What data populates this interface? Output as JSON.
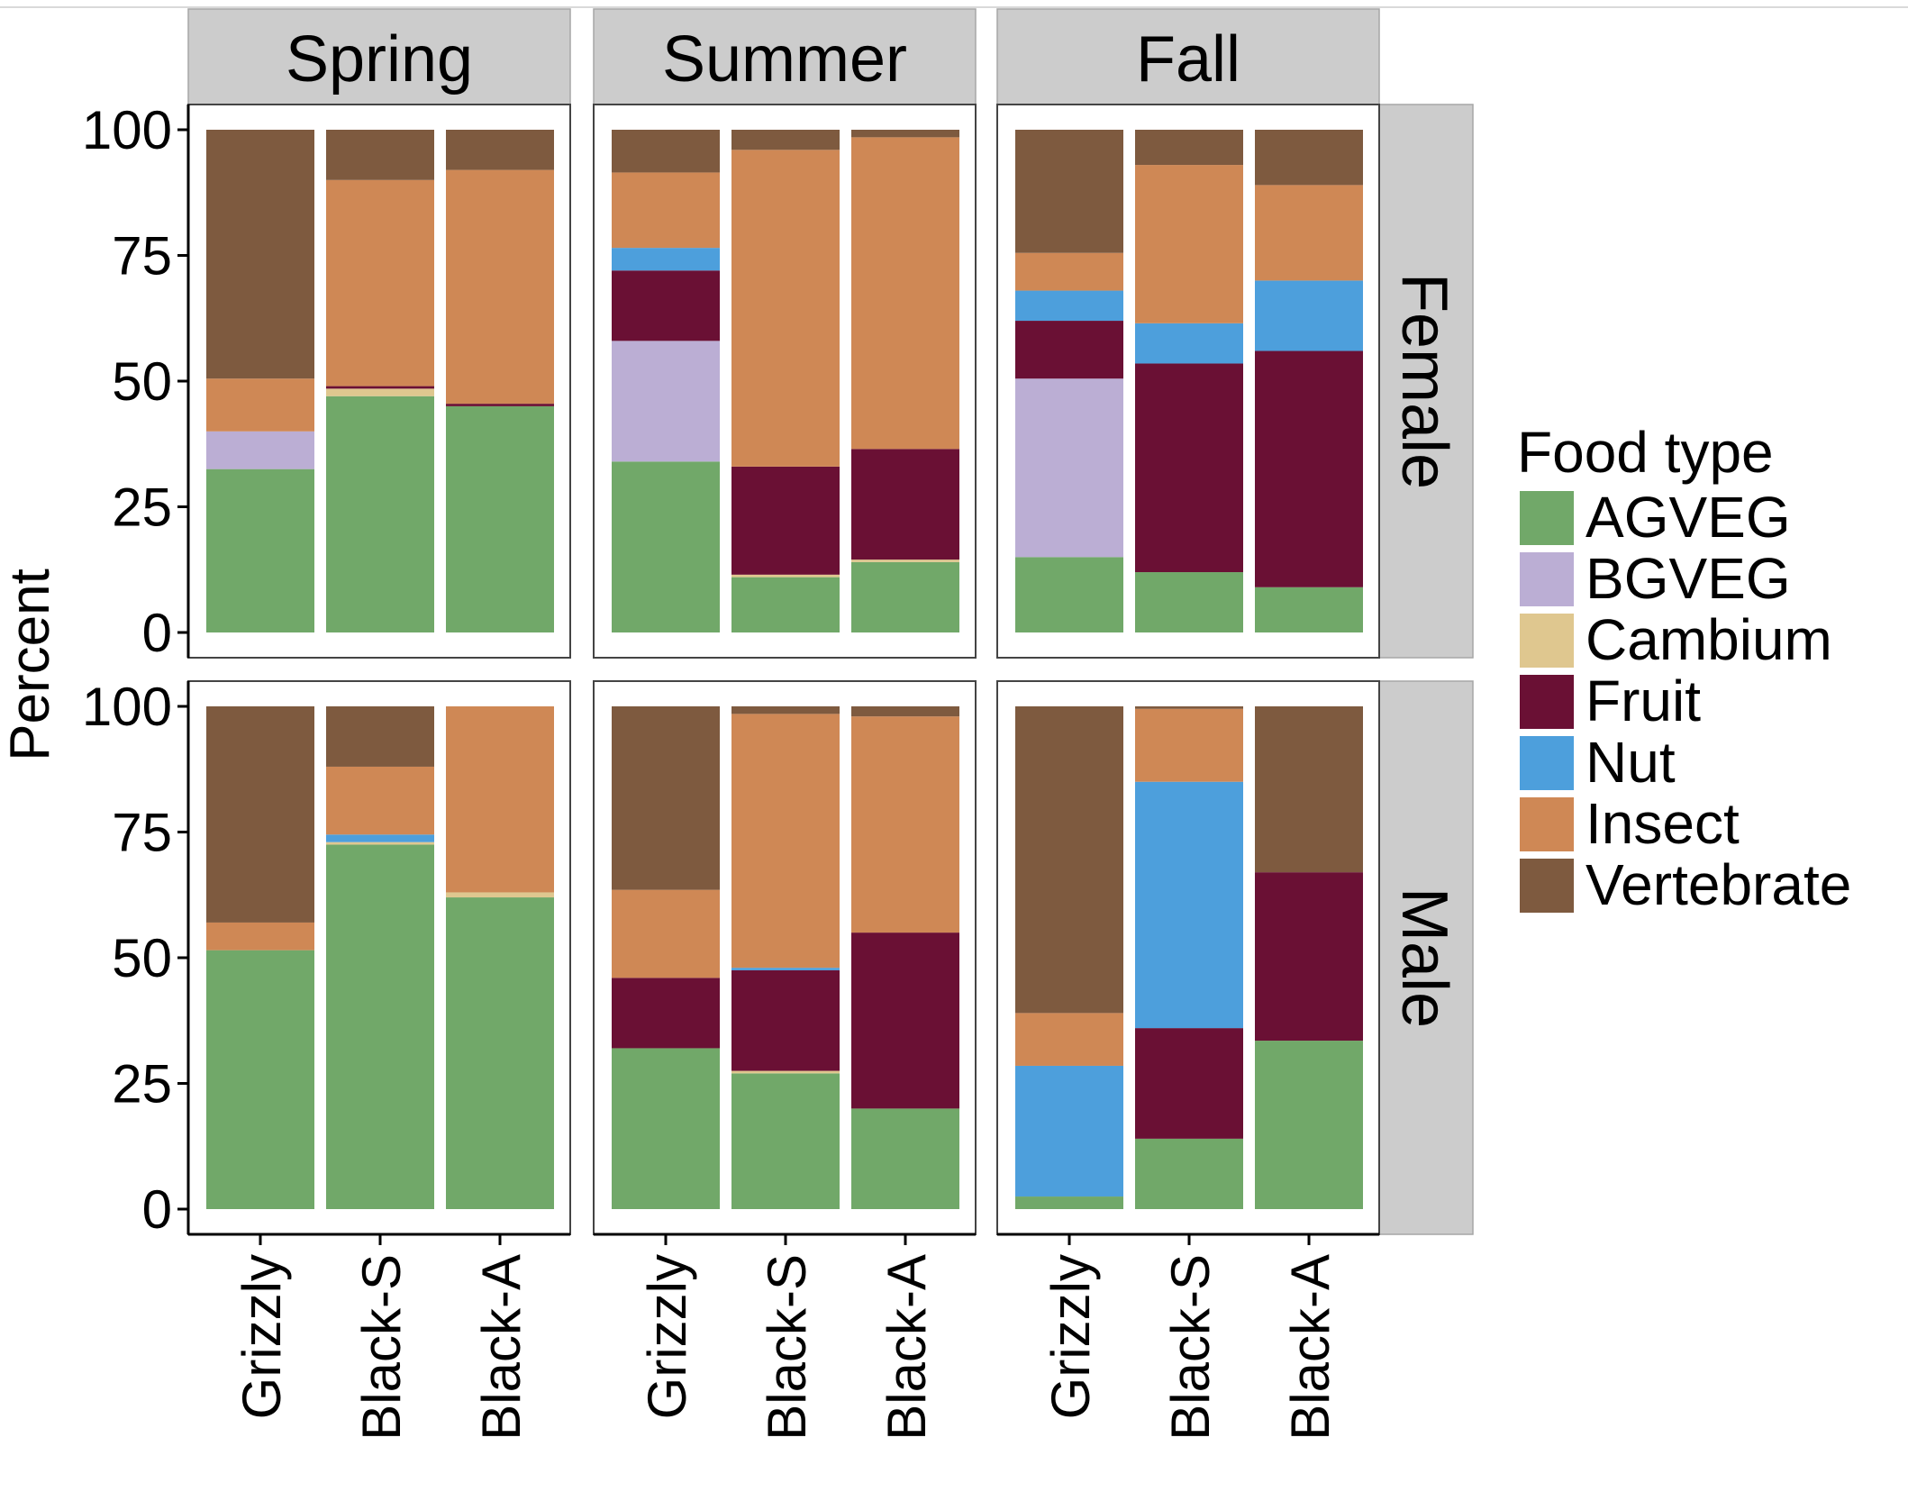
{
  "chart_data": {
    "type": "bar",
    "stacked": true,
    "ylabel": "Percent",
    "xlabel": "",
    "ylim": [
      0,
      100
    ],
    "yticks": [
      0,
      25,
      50,
      75,
      100
    ],
    "categories": [
      "Grizzly",
      "Black-S",
      "Black-A"
    ],
    "seasons": [
      "Spring",
      "Summer",
      "Fall"
    ],
    "sexes": [
      "Female",
      "Male"
    ],
    "legend": {
      "title": "Food type",
      "position": "right",
      "entries": [
        "AGVEG",
        "BGVEG",
        "Cambium",
        "Fruit",
        "Nut",
        "Insect",
        "Vertebrate"
      ]
    },
    "colors": {
      "AGVEG": "#71a869",
      "BGVEG": "#bbaed4",
      "Cambium": "#dfc78f",
      "Fruit": "#6a1034",
      "Nut": "#4d9fdc",
      "Insect": "#cf8855",
      "Vertebrate": "#7e5a3f"
    },
    "panels": [
      {
        "season": "Spring",
        "sex": "Female",
        "bars": [
          {
            "AGVEG": 32.5,
            "BGVEG": 7.5,
            "Cambium": 0,
            "Fruit": 0,
            "Nut": 0,
            "Insect": 10.5,
            "Vertebrate": 49.5
          },
          {
            "AGVEG": 47,
            "BGVEG": 0,
            "Cambium": 1.5,
            "Fruit": 0.5,
            "Nut": 0,
            "Insect": 41,
            "Vertebrate": 10
          },
          {
            "AGVEG": 45,
            "BGVEG": 0,
            "Cambium": 0,
            "Fruit": 0.5,
            "Nut": 0,
            "Insect": 46.5,
            "Vertebrate": 8
          }
        ]
      },
      {
        "season": "Summer",
        "sex": "Female",
        "bars": [
          {
            "AGVEG": 34,
            "BGVEG": 24,
            "Cambium": 0,
            "Fruit": 14,
            "Nut": 4.5,
            "Insect": 15,
            "Vertebrate": 8.5
          },
          {
            "AGVEG": 11,
            "BGVEG": 0,
            "Cambium": 0.5,
            "Fruit": 21.5,
            "Nut": 0,
            "Insect": 63,
            "Vertebrate": 4
          },
          {
            "AGVEG": 14,
            "BGVEG": 0,
            "Cambium": 0.5,
            "Fruit": 22,
            "Nut": 0,
            "Insect": 62,
            "Vertebrate": 1.5
          }
        ]
      },
      {
        "season": "Fall",
        "sex": "Female",
        "bars": [
          {
            "AGVEG": 15,
            "BGVEG": 35.5,
            "Cambium": 0,
            "Fruit": 11.5,
            "Nut": 6,
            "Insect": 7.5,
            "Vertebrate": 24.5
          },
          {
            "AGVEG": 12,
            "BGVEG": 0,
            "Cambium": 0,
            "Fruit": 41.5,
            "Nut": 8,
            "Insect": 31.5,
            "Vertebrate": 7
          },
          {
            "AGVEG": 9,
            "BGVEG": 0,
            "Cambium": 0,
            "Fruit": 47,
            "Nut": 14,
            "Insect": 19,
            "Vertebrate": 11
          }
        ]
      },
      {
        "season": "Spring",
        "sex": "Male",
        "bars": [
          {
            "AGVEG": 51.5,
            "BGVEG": 0,
            "Cambium": 0,
            "Fruit": 0,
            "Nut": 0,
            "Insect": 5.5,
            "Vertebrate": 43
          },
          {
            "AGVEG": 72.5,
            "BGVEG": 0,
            "Cambium": 0.5,
            "Fruit": 0,
            "Nut": 1.5,
            "Insect": 13.5,
            "Vertebrate": 12
          },
          {
            "AGVEG": 62,
            "BGVEG": 0,
            "Cambium": 1,
            "Fruit": 0,
            "Nut": 0,
            "Insect": 37,
            "Vertebrate": 0
          }
        ]
      },
      {
        "season": "Summer",
        "sex": "Male",
        "bars": [
          {
            "AGVEG": 32,
            "BGVEG": 0,
            "Cambium": 0,
            "Fruit": 14,
            "Nut": 0,
            "Insect": 17.5,
            "Vertebrate": 36.5
          },
          {
            "AGVEG": 27,
            "BGVEG": 0,
            "Cambium": 0.5,
            "Fruit": 20,
            "Nut": 0.5,
            "Insect": 50.5,
            "Vertebrate": 1.5
          },
          {
            "AGVEG": 20,
            "BGVEG": 0,
            "Cambium": 0,
            "Fruit": 35,
            "Nut": 0,
            "Insect": 43,
            "Vertebrate": 2
          }
        ]
      },
      {
        "season": "Fall",
        "sex": "Male",
        "bars": [
          {
            "AGVEG": 2.5,
            "BGVEG": 0,
            "Cambium": 0,
            "Fruit": 0,
            "Nut": 26,
            "Insect": 10.5,
            "Vertebrate": 61
          },
          {
            "AGVEG": 14,
            "BGVEG": 0,
            "Cambium": 0,
            "Fruit": 22,
            "Nut": 49,
            "Insect": 14.5,
            "Vertebrate": 0.5
          },
          {
            "AGVEG": 33.5,
            "BGVEG": 0,
            "Cambium": 0,
            "Fruit": 33.5,
            "Nut": 0,
            "Insect": 0,
            "Vertebrate": 33
          }
        ]
      }
    ]
  }
}
